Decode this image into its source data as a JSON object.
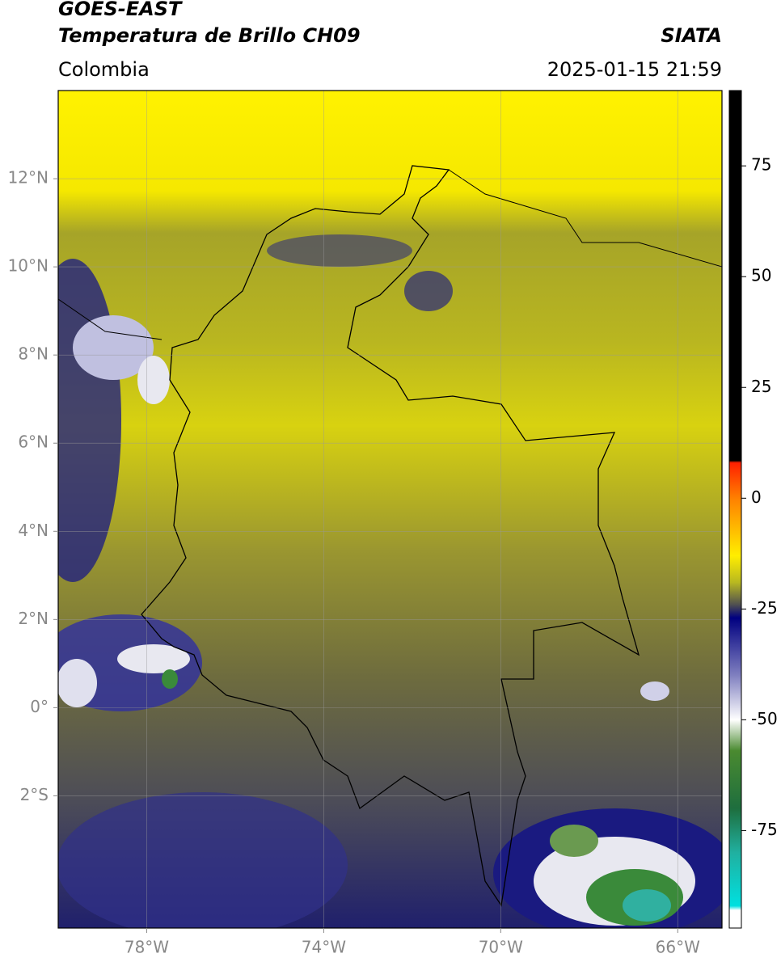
{
  "header": {
    "title": "GOES-EAST",
    "subtitle": "Temperatura de Brillo CH09",
    "source": "SIATA",
    "region": "Colombia",
    "timestamp": "2025-01-15 21:59"
  },
  "map": {
    "lon_range": [
      -80,
      -65
    ],
    "lat_range": [
      -5,
      14
    ],
    "grid": true,
    "lon_ticks": [
      {
        "value": -78,
        "label": "78°W"
      },
      {
        "value": -74,
        "label": "74°W"
      },
      {
        "value": -70,
        "label": "70°W"
      },
      {
        "value": -66,
        "label": "66°W"
      }
    ],
    "lat_ticks": [
      {
        "value": 12,
        "label": "12°N"
      },
      {
        "value": 10,
        "label": "10°N"
      },
      {
        "value": 8,
        "label": "8°N"
      },
      {
        "value": 6,
        "label": "6°N"
      },
      {
        "value": 4,
        "label": "4°N"
      },
      {
        "value": 2,
        "label": "2°N"
      },
      {
        "value": 0,
        "label": "0°"
      },
      {
        "value": -2,
        "label": "2°S"
      }
    ]
  },
  "colorbar": {
    "range": [
      -97,
      92
    ],
    "ticks": [
      75,
      50,
      25,
      0,
      -25,
      -50,
      -75
    ],
    "colormap": [
      {
        "value": 92,
        "color": "#000000"
      },
      {
        "value": 8.5,
        "color": "#000000"
      },
      {
        "value": 8,
        "color": "#ff2000"
      },
      {
        "value": 0,
        "color": "#ff8000"
      },
      {
        "value": -13,
        "color": "#ffee00"
      },
      {
        "value": -19,
        "color": "#b8b820"
      },
      {
        "value": -24,
        "color": "#505050"
      },
      {
        "value": -27,
        "color": "#000080"
      },
      {
        "value": -40,
        "color": "#8080c0"
      },
      {
        "value": -50,
        "color": "#ffffff"
      },
      {
        "value": -57,
        "color": "#4a8a30"
      },
      {
        "value": -70,
        "color": "#1e6e3e"
      },
      {
        "value": -80,
        "color": "#20b0a0"
      },
      {
        "value": -92,
        "color": "#00e0e0"
      },
      {
        "value": -93,
        "color": "#ffffff"
      },
      {
        "value": -97,
        "color": "#ffffff"
      }
    ]
  }
}
